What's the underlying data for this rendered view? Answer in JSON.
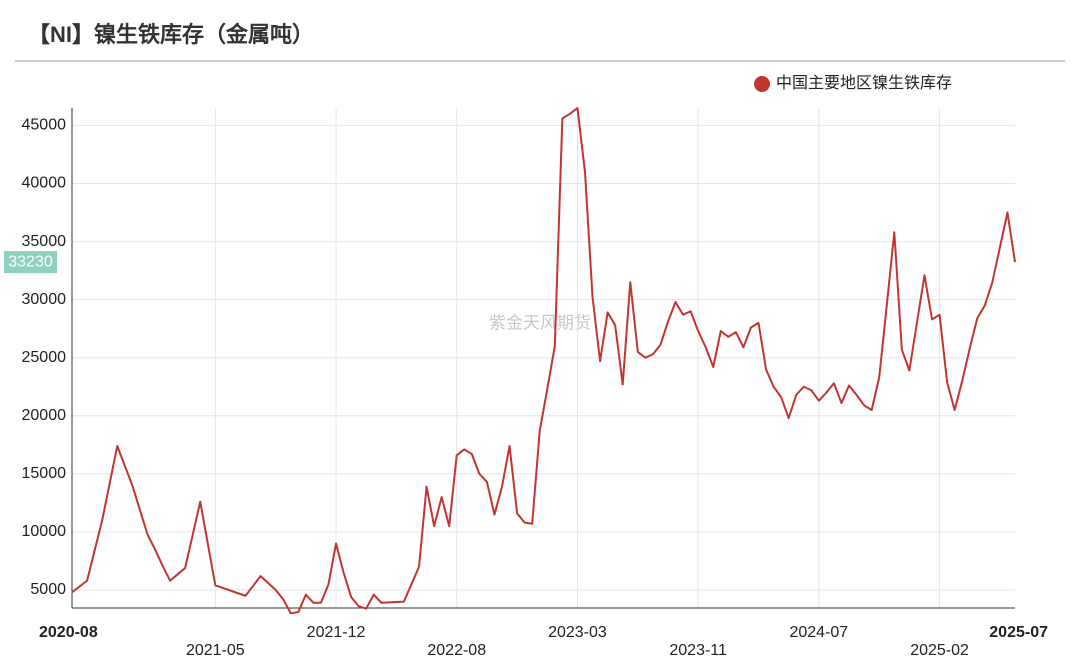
{
  "chart_data": {
    "type": "line",
    "title": "【NI】镍生铁库存（金属吨）",
    "watermark": "紫金天风期货",
    "categories": [
      "2020-08",
      null,
      null,
      null,
      null,
      null,
      null,
      null,
      null,
      null,
      null,
      null,
      null,
      null,
      null,
      null,
      null,
      null,
      null,
      "2021-05",
      null,
      null,
      null,
      null,
      null,
      null,
      null,
      null,
      null,
      null,
      null,
      null,
      null,
      null,
      null,
      "2021-12",
      null,
      null,
      null,
      null,
      null,
      null,
      null,
      null,
      null,
      null,
      null,
      null,
      null,
      null,
      null,
      "2022-08",
      null,
      null,
      null,
      null,
      null,
      null,
      null,
      null,
      null,
      null,
      null,
      null,
      null,
      null,
      null,
      "2023-03",
      null,
      null,
      null,
      null,
      null,
      null,
      null,
      null,
      null,
      null,
      null,
      null,
      null,
      null,
      null,
      "2023-11",
      null,
      null,
      null,
      null,
      null,
      null,
      null,
      null,
      null,
      null,
      null,
      null,
      null,
      null,
      null,
      "2024-07",
      null,
      null,
      null,
      null,
      null,
      null,
      null,
      null,
      null,
      null,
      null,
      null,
      null,
      null,
      null,
      "2025-02",
      null,
      null,
      null,
      null,
      null,
      null,
      null,
      null,
      null,
      "2025-07"
    ],
    "series": [
      {
        "name": "中国主要地区镍生铁库存",
        "color": "#c23531",
        "values": [
          4800,
          5300,
          5800,
          8400,
          11000,
          14200,
          17400,
          15700,
          14000,
          11900,
          9800,
          8500,
          7100,
          5800,
          6350,
          6900,
          9750,
          12600,
          9000,
          5400,
          5180,
          4950,
          4720,
          4500,
          5350,
          6200,
          5600,
          5000,
          4200,
          3000,
          3100,
          4600,
          3900,
          3900,
          5500,
          9000,
          6500,
          4400,
          3600,
          3400,
          4600,
          3900,
          3930,
          3970,
          4000,
          5500,
          7000,
          13900,
          10500,
          13000,
          10500,
          16600,
          17100,
          16700,
          15000,
          14300,
          11500,
          13900,
          17400,
          11600,
          10800,
          10700,
          18700,
          22300,
          26000,
          45600,
          46000,
          46500,
          41000,
          30200,
          24700,
          28900,
          27800,
          22700,
          31500,
          25500,
          25000,
          25300,
          26100,
          28100,
          29800,
          28700,
          29000,
          27300,
          25900,
          24200,
          27300,
          26800,
          27200,
          25900,
          27600,
          28000,
          24000,
          22500,
          21600,
          19800,
          21800,
          22500,
          22200,
          21300,
          22000,
          22800,
          21100,
          22600,
          21800,
          20900,
          20500,
          23300,
          29500,
          35800,
          25700,
          23900,
          28000,
          32100,
          28300,
          28700,
          22900,
          20500,
          23000,
          25800,
          28400,
          29500,
          31500,
          34500,
          37500,
          33230
        ]
      }
    ],
    "ylim": [
      3450,
      46500
    ],
    "yticks": [
      5000,
      10000,
      15000,
      20000,
      25000,
      30000,
      35000,
      40000,
      45000
    ],
    "grid": true,
    "legend": "top-right"
  }
}
